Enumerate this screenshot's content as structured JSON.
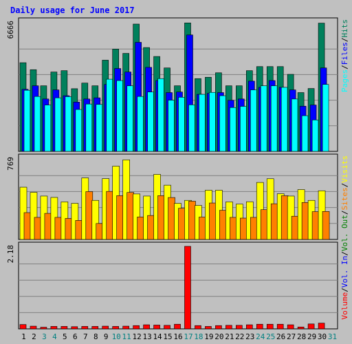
{
  "chart_data": {
    "type": "bar",
    "title": "Daily usage for June 2017",
    "categories": [
      "1",
      "2",
      "3",
      "4",
      "5",
      "6",
      "7",
      "8",
      "9",
      "10",
      "11",
      "12",
      "13",
      "14",
      "15",
      "16",
      "17",
      "18",
      "19",
      "20",
      "21",
      "22",
      "23",
      "24",
      "25",
      "26",
      "27",
      "28",
      "29",
      "30",
      "31"
    ],
    "weekend_days": [
      3,
      4,
      10,
      11,
      17,
      18,
      24,
      25,
      31
    ],
    "colors": {
      "title": "#0000ff",
      "background": "#c0c0c0",
      "grid": "#808080",
      "weekday_label": "#000000",
      "weekend_label": "#008080",
      "hits": "#00805c",
      "files": "#0000ff",
      "pages": "#00ffff",
      "visits": "#ffff00",
      "sites": "#ff8000",
      "kbytes": "#ff0000"
    },
    "panels": [
      {
        "id": "hits-files-pages",
        "ymax_label": "6666",
        "ylim": [
          0,
          6666
        ],
        "series": [
          {
            "name": "Hits",
            "color": "#00805c",
            "values": [
              4570,
              4210,
              3380,
              4090,
              4160,
              3230,
              3520,
              3380,
              4700,
              5270,
              5050,
              6560,
              5350,
              4890,
              4300,
              3380,
              6620,
              3750,
              3820,
              4050,
              3380,
              3380,
              4160,
              4370,
              4370,
              4370,
              3970,
              3030,
              3240,
              6610,
              null
            ]
          },
          {
            "name": "Files",
            "color": "#0000ff",
            "values": [
              3200,
              3380,
              2700,
              3170,
              2870,
              2540,
              2700,
              2760,
              3450,
              4270,
              4090,
              5620,
              4330,
              3650,
              3030,
              3060,
              6000,
              2940,
              2990,
              3030,
              2630,
              2700,
              3620,
              3300,
              3650,
              3300,
              3170,
              2330,
              2390,
              4300,
              null
            ]
          },
          {
            "name": "Pages",
            "color": "#00ffff",
            "values": [
              3150,
              2830,
              2390,
              2760,
              2820,
              2160,
              2440,
              2420,
              3720,
              3650,
              3380,
              2830,
              3060,
              3750,
              2640,
              2790,
              2400,
              2940,
              3040,
              2870,
              2260,
              2320,
              3170,
              3380,
              3380,
              3300,
              2700,
              1840,
              1620,
              3450,
              null
            ]
          }
        ],
        "yaxis_legend": [
          {
            "text": "Pages",
            "color": "#00ffff"
          },
          {
            "text": "/",
            "color": "#000000"
          },
          {
            "text": "Files",
            "color": "#0000ff"
          },
          {
            "text": "/",
            "color": "#000000"
          },
          {
            "text": "Hits",
            "color": "#00805c"
          }
        ]
      },
      {
        "id": "visits-sites",
        "ymax_label": "769",
        "ylim": [
          0,
          769
        ],
        "series": [
          {
            "name": "Visits",
            "color": "#ffff00",
            "values": [
              495,
              446,
              411,
              398,
              356,
              342,
              583,
              370,
              576,
              694,
              754,
              431,
              411,
              616,
              514,
              342,
              370,
              322,
              466,
              466,
              356,
              335,
              357,
              540,
              575,
              433,
              411,
              472,
              370,
              461,
              null
            ]
          },
          {
            "name": "Sites",
            "color": "#ff8000",
            "values": [
              254,
              209,
              247,
              209,
              199,
              180,
              453,
              151,
              455,
              415,
              445,
              213,
              227,
              415,
              397,
              295,
              362,
              212,
              345,
              276,
              209,
              202,
              209,
              282,
              338,
              414,
              220,
              350,
              263,
              265,
              null
            ]
          }
        ],
        "yaxis_legend": [
          {
            "text": "Volume",
            "color": "#ff0000"
          },
          {
            "text": "/",
            "color": "#000000"
          },
          {
            "text": "Vol. In",
            "color": "#0000ff"
          },
          {
            "text": "/",
            "color": "#000000"
          },
          {
            "text": "Vol. Out",
            "color": "#008000"
          },
          {
            "text": "/",
            "color": "#000000"
          },
          {
            "text": "Sites",
            "color": "#ff8000"
          },
          {
            "text": "/",
            "color": "#000000"
          },
          {
            "text": "Visits",
            "color": "#ffff00"
          }
        ]
      },
      {
        "id": "volume",
        "ymax_label": "2.18",
        "ylim": [
          0,
          2.18
        ],
        "series": [
          {
            "name": "Volume",
            "color": "#ff0000",
            "values": [
              0.115,
              0.072,
              0.044,
              0.065,
              0.065,
              0.058,
              0.065,
              0.065,
              0.072,
              0.065,
              0.072,
              0.087,
              0.108,
              0.101,
              0.094,
              0.123,
              2.18,
              0.087,
              0.065,
              0.087,
              0.094,
              0.094,
              0.108,
              0.123,
              0.123,
              0.123,
              0.108,
              0.05,
              0.13,
              0.152,
              null
            ]
          }
        ]
      }
    ]
  }
}
